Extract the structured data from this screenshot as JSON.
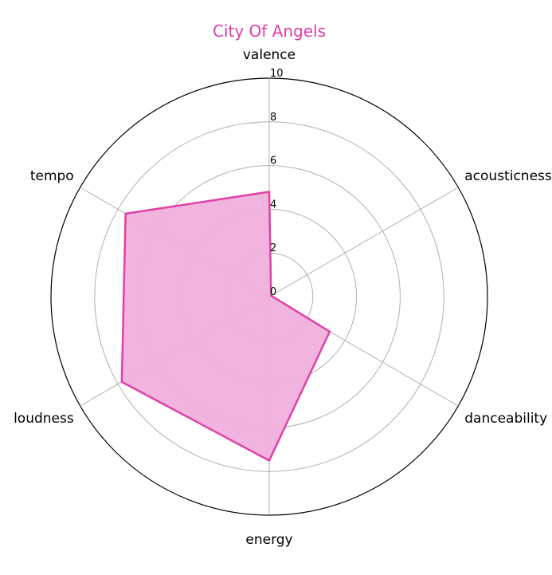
{
  "chart_data": {
    "type": "radar",
    "title": "City Of Angels",
    "axes": [
      "valence",
      "acousticness",
      "danceability",
      "energy",
      "loudness",
      "tempo"
    ],
    "series": [
      {
        "values": [
          4.8,
          0.1,
          3.2,
          7.5,
          7.8,
          7.6
        ]
      }
    ],
    "rlim": [
      0,
      10
    ],
    "rticks": [
      "0",
      "2",
      "4",
      "6",
      "8",
      "10"
    ],
    "grid": true,
    "colors": {
      "series": "#e040a8",
      "fill": "#f0b0dc",
      "grid": "#b0b0b0",
      "title": "#e040a8"
    }
  }
}
